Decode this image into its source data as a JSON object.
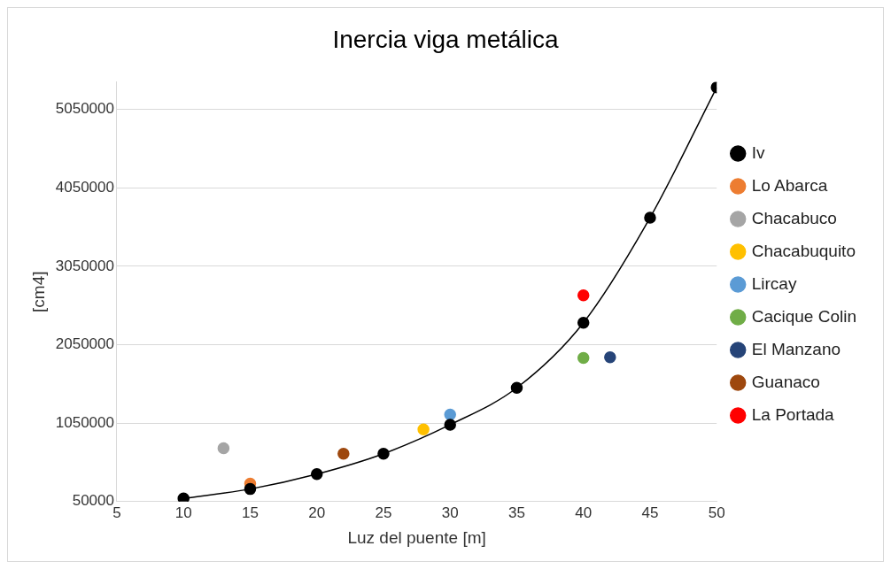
{
  "chart_data": {
    "type": "line",
    "title": "Inercia viga metálica",
    "xlabel": "Luz del puente [m]",
    "ylabel": "[cm4]",
    "xlim": [
      5,
      50
    ],
    "xticks": [
      5,
      10,
      15,
      20,
      25,
      30,
      35,
      40,
      45,
      50
    ],
    "ylim": [
      50000,
      5400000
    ],
    "yticks": [
      50000,
      1050000,
      2050000,
      3050000,
      4050000,
      5050000
    ],
    "grid": "y",
    "legend": "right",
    "marker": "circle",
    "line_style": "solid",
    "series": [
      {
        "name": "Iv",
        "type": "line",
        "color": "#000000",
        "x": [
          10,
          15,
          20,
          25,
          30,
          35,
          40,
          45,
          50
        ],
        "values": [
          90000,
          210000,
          400000,
          660000,
          1030000,
          1500000,
          2330000,
          3670000,
          5330000
        ]
      },
      {
        "name": "Lo Abarca",
        "type": "scatter",
        "color": "#ed7d31",
        "x": [
          15
        ],
        "values": [
          280000
        ]
      },
      {
        "name": "Chacabuco",
        "type": "scatter",
        "color": "#a5a5a5",
        "x": [
          13
        ],
        "values": [
          730000
        ]
      },
      {
        "name": "Chacabuquito",
        "type": "scatter",
        "color": "#ffc000",
        "x": [
          28
        ],
        "values": [
          970000
        ]
      },
      {
        "name": "Lircay",
        "type": "scatter",
        "color": "#5b9bd5",
        "x": [
          30
        ],
        "values": [
          1160000
        ]
      },
      {
        "name": "Cacique Colin",
        "type": "scatter",
        "color": "#70ad47",
        "x": [
          40
        ],
        "values": [
          1880000
        ]
      },
      {
        "name": "El Manzano",
        "type": "scatter",
        "color": "#264478",
        "x": [
          42
        ],
        "values": [
          1890000
        ]
      },
      {
        "name": "Guanaco",
        "type": "scatter",
        "color": "#9e480e",
        "x": [
          22
        ],
        "values": [
          660000
        ]
      },
      {
        "name": "La Portada",
        "type": "scatter",
        "color": "#ff0000",
        "x": [
          40
        ],
        "values": [
          2680000
        ]
      }
    ]
  }
}
